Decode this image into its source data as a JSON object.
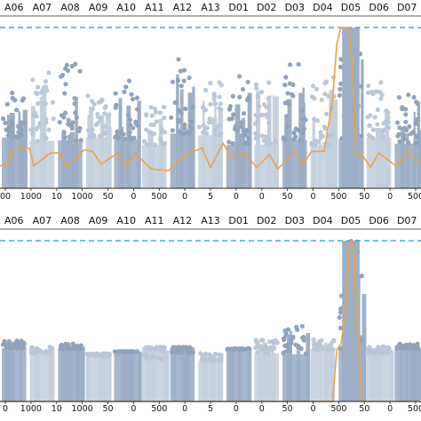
{
  "colors": {
    "point_light": "#b9c7d8",
    "point_dark": "#8fa3bb",
    "band_light": "#c4d0de",
    "band_dark": "#9cafc6",
    "trend": "#f0a040",
    "threshold": "#3bb3c9",
    "axis": "#222222"
  },
  "chart_data": [
    {
      "type": "scatter",
      "title": "",
      "xlabel": "",
      "ylabel": "",
      "grid": false,
      "legend": "none",
      "chromosomes": [
        "A06",
        "A07",
        "A08",
        "A09",
        "A10",
        "A11",
        "A12",
        "A13",
        "D01",
        "D02",
        "D03",
        "D04",
        "D05",
        "D06",
        "D07"
      ],
      "tick_labels": [
        "00",
        "1000",
        "10",
        "1000",
        "50",
        "0",
        "500",
        "0",
        "5",
        "0",
        "0",
        "50",
        "0",
        "500",
        "50",
        "0",
        "500"
      ],
      "threshold_line": 1.0,
      "ylim": [
        0,
        1.05
      ],
      "series": [
        {
          "kind": "points",
          "peak_by_chromosome": [
            0.62,
            0.72,
            0.78,
            0.58,
            0.68,
            0.52,
            0.82,
            0.66,
            0.72,
            0.7,
            0.86,
            0.72,
            1.0,
            0.68,
            0.64
          ]
        },
        {
          "kind": "trend",
          "x": [
            0.0,
            0.02,
            0.03,
            0.07,
            0.08,
            0.12,
            0.14,
            0.16,
            0.2,
            0.22,
            0.24,
            0.28,
            0.3,
            0.32,
            0.36,
            0.4,
            0.44,
            0.48,
            0.5,
            0.53,
            0.55,
            0.58,
            0.61,
            0.64,
            0.66,
            0.7,
            0.72,
            0.74,
            0.77,
            0.79,
            0.8,
            0.81,
            0.83,
            0.84,
            0.845,
            0.86,
            0.88,
            0.9,
            0.94,
            0.97,
            1.0
          ],
          "y": [
            0.14,
            0.15,
            0.24,
            0.25,
            0.14,
            0.22,
            0.22,
            0.13,
            0.24,
            0.23,
            0.15,
            0.22,
            0.14,
            0.22,
            0.12,
            0.11,
            0.21,
            0.25,
            0.13,
            0.28,
            0.19,
            0.22,
            0.13,
            0.21,
            0.12,
            0.23,
            0.15,
            0.23,
            0.23,
            0.55,
            0.9,
            1.0,
            1.0,
            0.6,
            0.2,
            0.21,
            0.13,
            0.22,
            0.14,
            0.22,
            0.16
          ]
        }
      ]
    },
    {
      "type": "scatter",
      "title": "",
      "xlabel": "",
      "ylabel": "",
      "grid": false,
      "legend": "none",
      "chromosomes": [
        "A06",
        "A07",
        "A08",
        "A09",
        "A10",
        "A11",
        "A12",
        "A13",
        "D01",
        "D02",
        "D03",
        "D04",
        "D05",
        "D06",
        "D07"
      ],
      "tick_labels": [
        "0",
        "1000",
        "10",
        "1000",
        "50",
        "0",
        "500",
        "0",
        "5",
        "0",
        "0",
        "50",
        "0",
        "500",
        "50",
        "0",
        "500"
      ],
      "threshold_line": 1.0,
      "ylim": [
        0,
        1.05
      ],
      "series": [
        {
          "kind": "points",
          "peak_by_chromosome": [
            0.38,
            0.34,
            0.36,
            0.28,
            0.31,
            0.26,
            0.3,
            0.3,
            0.33,
            0.4,
            0.48,
            0.4,
            1.0,
            0.34,
            0.36
          ]
        },
        {
          "kind": "trend",
          "x": [
            0.0,
            0.79,
            0.8,
            0.81,
            0.82,
            0.83,
            0.835,
            0.84,
            0.845,
            0.86,
            1.0
          ],
          "y": [
            0.0,
            0.0,
            0.32,
            0.36,
            0.52,
            0.97,
            1.0,
            0.98,
            0.62,
            0.0,
            0.0
          ]
        }
      ]
    }
  ]
}
